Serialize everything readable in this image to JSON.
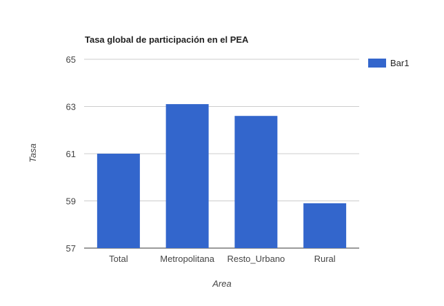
{
  "chart_data": {
    "type": "bar",
    "title": "Tasa global de participación en el PEA",
    "xlabel": "Area",
    "ylabel": "Tasa",
    "categories": [
      "Total",
      "Metropolitana",
      "Resto_Urbano",
      "Rural"
    ],
    "series": [
      {
        "name": "Bar1",
        "color": "#3366cc",
        "values": [
          61.0,
          63.1,
          62.6,
          58.9
        ]
      }
    ],
    "ylim": [
      57,
      65
    ],
    "yticks": [
      57,
      59,
      61,
      63,
      65
    ],
    "grid": true,
    "legend": "right"
  }
}
